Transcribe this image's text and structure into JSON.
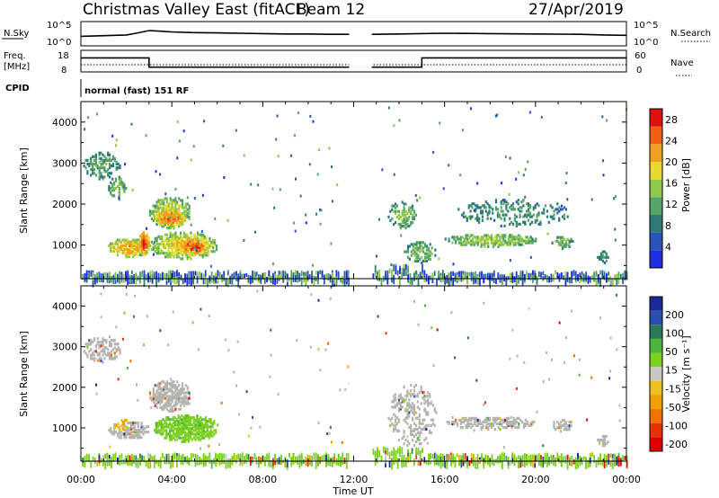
{
  "header": {
    "station": "Christmas Valley East (fitACF)",
    "beam": "Beam 12",
    "date": "27/Apr/2019"
  },
  "panels": {
    "nsky_label": "N.Sky",
    "nsearch_label": "N.Search",
    "freq_label_line1": "Freq.",
    "freq_label_line2": "[MHz]",
    "nave_label": "Nave",
    "cpid_label": "CPID",
    "cpid_value": "normal (fast) 151 RF"
  },
  "colors": {
    "power_scale": [
      "#1f2ee0",
      "#2a55b8",
      "#2e7a78",
      "#55a368",
      "#8ec84a",
      "#e8d830",
      "#f0a020",
      "#f06010",
      "#e01010"
    ],
    "velocity_scale": [
      "#1a2a9a",
      "#2a4fb0",
      "#2a7a58",
      "#4fb43c",
      "#7cd020",
      "#c8c8c0",
      "#f0c020",
      "#f0a000",
      "#f07000",
      "#e83000",
      "#e00000"
    ],
    "ground_scatter": "#b4b4b0"
  },
  "chart_data": [
    {
      "type": "line",
      "name": "sky-noise-panel",
      "title": "",
      "ylabel": "N.Sky",
      "y_ticks": [
        "10^5",
        "10^0"
      ],
      "right_ticks": [
        "10^5",
        "10^0"
      ],
      "ylim_log10": [
        0,
        5
      ],
      "x_hours": [
        0,
        1,
        2,
        2.5,
        3,
        3.5,
        4,
        5,
        6,
        7,
        8,
        9,
        10,
        11,
        11.8,
        12.8,
        14,
        16,
        18,
        20,
        22,
        23,
        24
      ],
      "nsky_log10": [
        1.2,
        1.4,
        1.6,
        2.2,
        2.9,
        2.7,
        2.5,
        2.3,
        2.2,
        2.1,
        2.0,
        1.9,
        1.9,
        1.8,
        1.8,
        1.8,
        1.9,
        2.1,
        2.0,
        1.9,
        1.8,
        1.6,
        1.5
      ],
      "data_gap_hours": [
        11.8,
        12.8
      ]
    },
    {
      "type": "line",
      "name": "frequency-nave-panel",
      "ylabel": "Freq. [MHz]",
      "y_ticks": [
        "18",
        "8"
      ],
      "right_ticks": [
        "60",
        "0"
      ],
      "ylim_freq": [
        8,
        18
      ],
      "ylim_nave": [
        0,
        60
      ],
      "freq_steps": [
        {
          "from": 0,
          "to": 3,
          "mhz": 14.5
        },
        {
          "from": 3,
          "to": 11.8,
          "mhz": 10.2
        },
        {
          "from": 12.8,
          "to": 15,
          "mhz": 10.2
        },
        {
          "from": 15,
          "to": 24,
          "mhz": 14.5
        }
      ],
      "nave_level": 20
    },
    {
      "type": "heatmap",
      "name": "power-panel",
      "xlabel": "",
      "ylabel": "Slant Range [km]",
      "xlim_hours": [
        0,
        24
      ],
      "ylim_km": [
        180,
        4500
      ],
      "y_ticks": [
        1000,
        2000,
        3000,
        4000
      ],
      "colorbar_label": "Power [dB]",
      "colorbar_ticks": [
        4,
        8,
        12,
        16,
        20,
        24,
        28
      ],
      "colorbar_range": [
        0,
        30
      ],
      "blobs": [
        {
          "t0": 0.1,
          "t1": 1.7,
          "r0": 2650,
          "r1": 3300,
          "level": 12,
          "density": 0.5
        },
        {
          "t0": 1.2,
          "t1": 2.0,
          "r0": 2150,
          "r1": 2700,
          "level": 14,
          "density": 0.4
        },
        {
          "t0": 1.2,
          "t1": 3.0,
          "r0": 750,
          "r1": 1200,
          "level": 22,
          "density": 0.8
        },
        {
          "t0": 2.5,
          "t1": 3.0,
          "r0": 800,
          "r1": 1350,
          "level": 28,
          "density": 0.9
        },
        {
          "t0": 3.0,
          "t1": 4.8,
          "r0": 1450,
          "r1": 2200,
          "level": 18,
          "density": 0.7
        },
        {
          "t0": 3.2,
          "t1": 4.6,
          "r0": 1500,
          "r1": 1900,
          "level": 26,
          "density": 0.8
        },
        {
          "t0": 3.0,
          "t1": 6.0,
          "r0": 700,
          "r1": 1350,
          "level": 20,
          "density": 0.75
        },
        {
          "t0": 4.3,
          "t1": 5.5,
          "r0": 800,
          "r1": 1200,
          "level": 28,
          "density": 0.8
        },
        {
          "t0": 13.5,
          "t1": 14.8,
          "r0": 1450,
          "r1": 2100,
          "level": 14,
          "density": 0.45
        },
        {
          "t0": 14.2,
          "t1": 15.6,
          "r0": 600,
          "r1": 1100,
          "level": 14,
          "density": 0.5
        },
        {
          "t0": 16.0,
          "t1": 20.0,
          "r0": 1000,
          "r1": 1300,
          "level": 16,
          "density": 0.7
        },
        {
          "t0": 16.5,
          "t1": 21.5,
          "r0": 1500,
          "r1": 2150,
          "level": 10,
          "density": 0.25
        },
        {
          "t0": 20.7,
          "t1": 21.6,
          "r0": 950,
          "r1": 1250,
          "level": 14,
          "density": 0.6
        },
        {
          "t0": 22.7,
          "t1": 23.2,
          "r0": 600,
          "r1": 900,
          "level": 10,
          "density": 0.5
        }
      ],
      "near_range_band_km": [
        180,
        450
      ],
      "data_gap_hours": [
        11.8,
        12.8
      ]
    },
    {
      "type": "heatmap",
      "name": "velocity-panel",
      "xlabel": "Time UT",
      "ylabel": "Slant Range [km]",
      "xlim_hours": [
        0,
        24
      ],
      "ylim_km": [
        180,
        4500
      ],
      "y_ticks": [
        1000,
        2000,
        3000,
        4000
      ],
      "x_ticks": [
        "00:00",
        "04:00",
        "08:00",
        "12:00",
        "16:00",
        "20:00",
        "00:00"
      ],
      "colorbar_label": "Velocity [m s⁻¹]",
      "colorbar_ticks": [
        200,
        100,
        50,
        15,
        -15,
        -50,
        -100,
        -200
      ],
      "blobs": [
        {
          "t0": 0.1,
          "t1": 1.7,
          "r0": 2650,
          "r1": 3300,
          "kind": "ground",
          "density": 0.45
        },
        {
          "t0": 1.2,
          "t1": 3.0,
          "r0": 750,
          "r1": 1200,
          "kind": "ground",
          "density": 0.6
        },
        {
          "t0": 1.3,
          "t1": 2.2,
          "r0": 1000,
          "r1": 1250,
          "kind": "neg",
          "density": 0.35
        },
        {
          "t0": 3.0,
          "t1": 4.8,
          "r0": 1450,
          "r1": 2200,
          "kind": "ground",
          "density": 0.65
        },
        {
          "t0": 3.2,
          "t1": 6.0,
          "r0": 700,
          "r1": 1350,
          "kind": "pos",
          "density": 0.75
        },
        {
          "t0": 13.5,
          "t1": 15.6,
          "r0": 600,
          "r1": 2100,
          "kind": "ground",
          "density": 0.3
        },
        {
          "t0": 16.0,
          "t1": 20.0,
          "r0": 1000,
          "r1": 1300,
          "kind": "ground",
          "density": 0.6
        },
        {
          "t0": 20.7,
          "t1": 21.6,
          "r0": 950,
          "r1": 1250,
          "kind": "ground",
          "density": 0.55
        },
        {
          "t0": 22.7,
          "t1": 23.2,
          "r0": 600,
          "r1": 900,
          "kind": "ground",
          "density": 0.5
        }
      ],
      "near_range_band_km": [
        180,
        450
      ],
      "data_gap_hours": [
        11.8,
        12.8
      ]
    }
  ]
}
